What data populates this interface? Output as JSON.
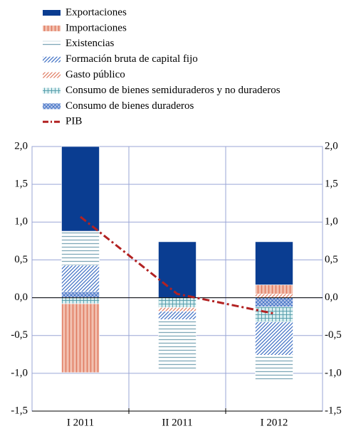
{
  "chart_data": {
    "type": "bar",
    "stacked": true,
    "categories": [
      "I 2011",
      "II 2011",
      "I 2012"
    ],
    "series": [
      {
        "name": "Exportaciones",
        "color": "#0a3d91",
        "values": [
          1.12,
          0.74,
          0.57
        ]
      },
      {
        "name": "Importaciones",
        "color": "#e07b62",
        "values": [
          -0.91,
          0,
          0.12
        ]
      },
      {
        "name": "Existencias",
        "color": "#7fa8b8",
        "values": [
          0.45,
          -0.68,
          -0.33
        ]
      },
      {
        "name": "Formación bruta de capital fijo",
        "color": "#3d6fc4",
        "values": [
          0.35,
          -0.11,
          -0.44
        ]
      },
      {
        "name": "Gasto público",
        "color": "#e07b62",
        "values": [
          0,
          -0.05,
          0.05
        ]
      },
      {
        "name": "Consumo de bienes semiduraderos y no duraderos",
        "color": "#4f9aa8",
        "values": [
          -0.08,
          -0.13,
          -0.2
        ]
      },
      {
        "name": "Consumo de bienes duraderos",
        "color": "#3d6fc4",
        "values": [
          0.08,
          0,
          -0.12
        ]
      },
      {
        "name": "PIB",
        "color": "#b22222",
        "type": "line",
        "values": [
          1.07,
          0.05,
          -0.21
        ]
      }
    ],
    "ylim": [
      -1.5,
      2.0
    ],
    "yticks": [
      {
        "value": -1.5,
        "label": "-1,5"
      },
      {
        "value": -1.0,
        "label": "-1,0"
      },
      {
        "value": -0.5,
        "label": "-0,5"
      },
      {
        "value": 0,
        "label": "0,0"
      },
      {
        "value": 0.5,
        "label": "0,5"
      },
      {
        "value": 1.0,
        "label": "1,0"
      },
      {
        "value": 1.5,
        "label": "1,5"
      },
      {
        "value": 2.0,
        "label": "2,0"
      }
    ],
    "grid": true,
    "legend": "top"
  }
}
